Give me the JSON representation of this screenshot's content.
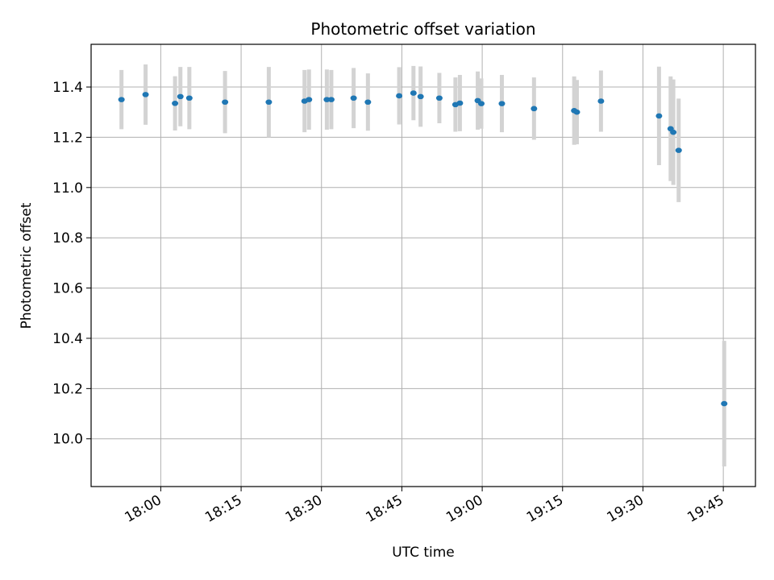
{
  "chart_data": {
    "type": "scatter",
    "title": "Photometric offset variation",
    "xlabel": "UTC time",
    "ylabel": "Photometric offset",
    "x_axis_type": "time",
    "xlim": [
      "17:47:00",
      "19:51:00"
    ],
    "ylim": [
      9.81,
      11.57
    ],
    "grid": true,
    "colors": {
      "point": "#1f77b4",
      "errorbar": "#d3d3d3",
      "grid": "#b0b0b0"
    },
    "x_ticks": [
      "18:00",
      "18:15",
      "18:30",
      "18:45",
      "19:00",
      "19:15",
      "19:30",
      "19:45"
    ],
    "y_ticks": [
      "10.0",
      "10.2",
      "10.4",
      "10.6",
      "10.8",
      "11.0",
      "11.2",
      "11.4"
    ],
    "y_tick_values": [
      10.0,
      10.2,
      10.4,
      10.6,
      10.8,
      11.0,
      11.2,
      11.4
    ],
    "points": [
      {
        "x": "17:52:40",
        "y": 11.35,
        "err": 0.118
      },
      {
        "x": "17:57:10",
        "y": 11.37,
        "err": 0.12
      },
      {
        "x": "18:02:40",
        "y": 11.335,
        "err": 0.108
      },
      {
        "x": "18:03:40",
        "y": 11.362,
        "err": 0.118
      },
      {
        "x": "18:05:20",
        "y": 11.356,
        "err": 0.124
      },
      {
        "x": "18:12:00",
        "y": 11.34,
        "err": 0.124
      },
      {
        "x": "18:20:10",
        "y": 11.34,
        "err": 0.14
      },
      {
        "x": "18:26:50",
        "y": 11.344,
        "err": 0.124
      },
      {
        "x": "18:27:40",
        "y": 11.35,
        "err": 0.12
      },
      {
        "x": "18:31:00",
        "y": 11.35,
        "err": 0.12
      },
      {
        "x": "18:31:50",
        "y": 11.35,
        "err": 0.118
      },
      {
        "x": "18:36:00",
        "y": 11.356,
        "err": 0.12
      },
      {
        "x": "18:38:40",
        "y": 11.34,
        "err": 0.114
      },
      {
        "x": "18:44:30",
        "y": 11.365,
        "err": 0.114
      },
      {
        "x": "18:47:10",
        "y": 11.376,
        "err": 0.108
      },
      {
        "x": "18:48:30",
        "y": 11.362,
        "err": 0.12
      },
      {
        "x": "18:52:00",
        "y": 11.356,
        "err": 0.1
      },
      {
        "x": "18:55:00",
        "y": 11.33,
        "err": 0.108
      },
      {
        "x": "18:55:50",
        "y": 11.336,
        "err": 0.112
      },
      {
        "x": "18:59:10",
        "y": 11.346,
        "err": 0.116
      },
      {
        "x": "18:59:50",
        "y": 11.334,
        "err": 0.1
      },
      {
        "x": "19:03:40",
        "y": 11.334,
        "err": 0.114
      },
      {
        "x": "19:09:40",
        "y": 11.314,
        "err": 0.124
      },
      {
        "x": "19:17:10",
        "y": 11.306,
        "err": 0.136
      },
      {
        "x": "19:17:40",
        "y": 11.3,
        "err": 0.128
      },
      {
        "x": "19:22:10",
        "y": 11.344,
        "err": 0.122
      },
      {
        "x": "19:33:00",
        "y": 11.285,
        "err": 0.196
      },
      {
        "x": "19:35:10",
        "y": 11.234,
        "err": 0.208
      },
      {
        "x": "19:35:40",
        "y": 11.22,
        "err": 0.21
      },
      {
        "x": "19:36:40",
        "y": 11.148,
        "err": 0.206
      },
      {
        "x": "19:45:10",
        "y": 10.14,
        "err": 0.25
      }
    ]
  }
}
